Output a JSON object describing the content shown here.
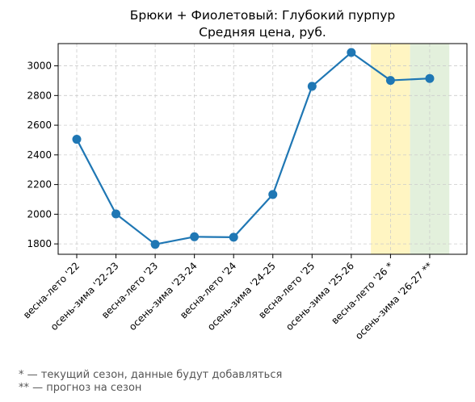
{
  "chart_data": {
    "type": "line",
    "title": "Брюки + Фиолетовый: Глубокий пурпур",
    "subtitle": "Средняя цена, руб.",
    "categories": [
      "весна-лето '22",
      "осень-зима '22-23",
      "весна-лето '23",
      "осень-зима '23-24",
      "весна-лето '24",
      "осень-зима '24-25",
      "весна-лето '25",
      "осень-зима '25-26",
      "весна-лето '26 *",
      "осень-зима '26-27 **"
    ],
    "series": [
      {
        "values": [
          2505,
          2002,
          1797,
          1848,
          1845,
          2133,
          2862,
          3090,
          2902,
          2915
        ],
        "color": "#1f77b4"
      }
    ],
    "ylim": [
      1730,
      3150
    ],
    "yticks": [
      1800,
      2000,
      2200,
      2400,
      2600,
      2800,
      3000
    ],
    "grid": true,
    "highlights": [
      {
        "category_index": 8,
        "color": "#fff5c2",
        "meaning": "текущий сезон"
      },
      {
        "category_index": 9,
        "color": "#e3f0dc",
        "meaning": "прогноз"
      }
    ],
    "footnotes": [
      "* — текущий сезон, данные будут добавляться",
      "** — прогноз на сезон"
    ]
  }
}
